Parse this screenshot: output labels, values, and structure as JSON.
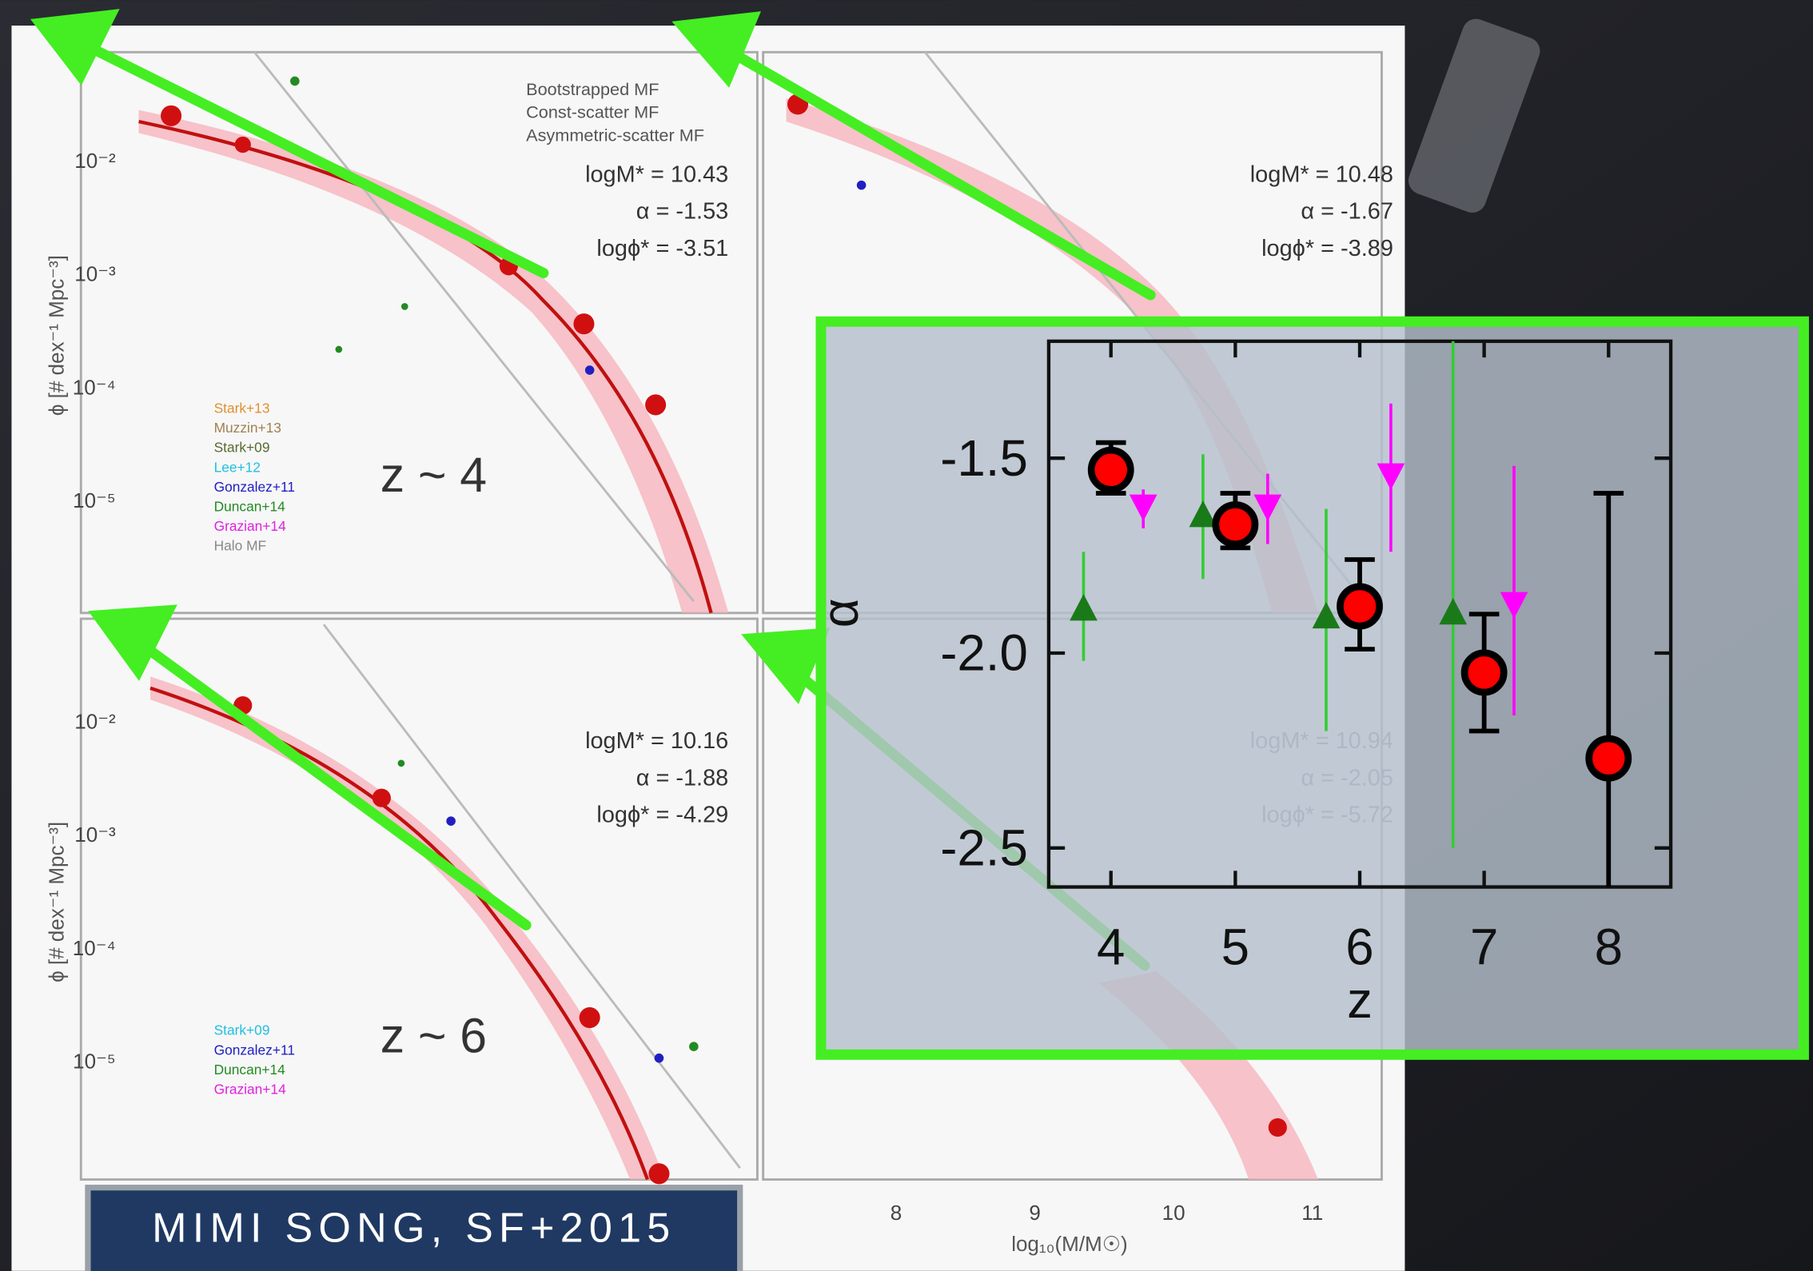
{
  "slide": {
    "legend": [
      "Bootstrapped MF",
      "Const-scatter MF",
      "Asymmetric-scatter MF"
    ],
    "panels": [
      {
        "label": "z ~ 4",
        "params": [
          "logM* = 10.43",
          "α = -1.53",
          "logϕ* = -3.51"
        ],
        "refs": [
          "Stark+13",
          "Muzzin+13",
          "Stark+09",
          "Lee+12",
          "Gonzalez+11",
          "Duncan+14",
          "Grazian+14",
          "Halo MF"
        ]
      },
      {
        "params": [
          "logM* = 10.48",
          "α = -1.67",
          "logϕ* = -3.89"
        ]
      },
      {
        "label": "z ~ 6",
        "params": [
          "logM* = 10.16",
          "α = -1.88",
          "logϕ* = -4.29"
        ],
        "refs": [
          "Stark+09",
          "Gonzalez+11",
          "Duncan+14",
          "Grazian+14"
        ]
      },
      {
        "params": [
          "logM* = 10.94",
          "α = -2.05",
          "logϕ* = -5.72"
        ]
      }
    ],
    "y_axis_label": "ϕ [# dex⁻¹ Mpc⁻³]",
    "y_tick_labels": [
      "10⁻²",
      "10⁻³",
      "10⁻⁴",
      "10⁻⁵"
    ],
    "x_tick_labels": [
      "8",
      "9",
      "10",
      "11"
    ],
    "x_axis_label": "log₁₀(M/M☉)",
    "caption": "MIMI SONG, SF+2015"
  },
  "chart_data": {
    "type": "errorbar",
    "x_label": "z",
    "y_label": "α",
    "xlim": [
      3.5,
      8.5
    ],
    "xticks": [
      4,
      5,
      6,
      7,
      8
    ],
    "ylim": [
      -2.6,
      -1.2
    ],
    "yticks": [
      -1.5,
      {
        "value": -2,
        "label": "-2.0"
      },
      -2.5
    ],
    "series": [
      {
        "marker": "up",
        "color": "#1a7a1a",
        "bar_color": "#33cc33",
        "x": [
          3.78,
          4.74,
          5.73,
          6.75
        ],
        "values": [
          -1.89,
          -1.65,
          -1.91,
          -1.9
        ],
        "err_plus": [
          0.15,
          0.16,
          0.28,
          0.7
        ],
        "err_minus": [
          0.13,
          0.16,
          0.29,
          0.6
        ]
      },
      {
        "marker": "down",
        "color": "#ff00ff",
        "bar_color": "#ff00ff",
        "x": [
          4.26,
          5.26,
          6.25,
          7.24
        ],
        "values": [
          -1.62,
          -1.62,
          -1.54,
          -1.87
        ],
        "err_plus": [
          0.04,
          0.08,
          0.18,
          0.35
        ],
        "err_minus": [
          0.06,
          0.1,
          0.2,
          0.29
        ]
      },
      {
        "marker": "circle",
        "color": "#ff0000",
        "bar_color": "#000000",
        "x": [
          4,
          5,
          6,
          7,
          8
        ],
        "values": [
          -1.53,
          -1.67,
          -1.88,
          -2.05,
          -2.27
        ],
        "err_plus": [
          0.07,
          0.08,
          0.12,
          0.15,
          0.68
        ],
        "err_minus": [
          0.06,
          0.06,
          0.11,
          0.15,
          0.4
        ]
      }
    ]
  }
}
